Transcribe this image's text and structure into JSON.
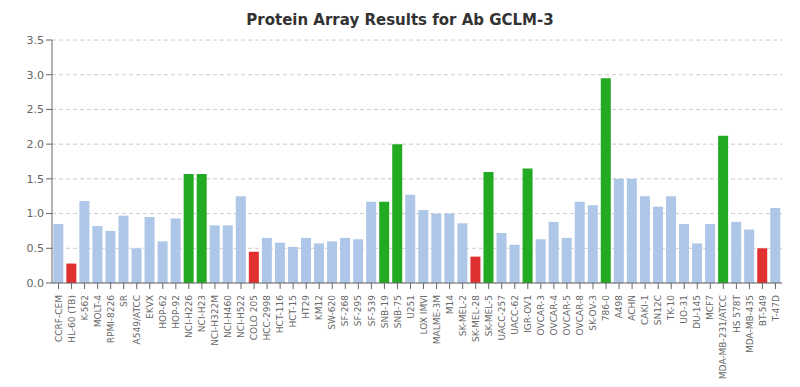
{
  "chart_data": {
    "type": "bar",
    "title": "Protein Array Results for Ab GCLM-3",
    "categories": [
      "CCRF-CEM",
      "HL-60 (TB)",
      "K-562",
      "MOLT-4",
      "RPMI-8226",
      "SR",
      "A549/ATCC",
      "EKVX",
      "HOP-62",
      "HOP-92",
      "NCI-H226",
      "NCI-H23",
      "NCI-H322M",
      "NCI-H460",
      "NCI-H522",
      "COLO 205",
      "HCC-2998",
      "HCT-116",
      "HCT-15",
      "HT29",
      "KM12",
      "SW-620",
      "SF-268",
      "SF-295",
      "SF-539",
      "SNB-19",
      "SNB-75",
      "U251",
      "LOX IMVI",
      "MALME-3M",
      "M14",
      "SK-MEL-2",
      "SK-MEL-28",
      "SK-MEL-5",
      "UACC-257",
      "UACC-62",
      "IGR-OV1",
      "OVCAR-3",
      "OVCAR-4",
      "OVCAR-5",
      "OVCAR-8",
      "SK-OV-3",
      "786-0",
      "A498",
      "ACHN",
      "CAKI-1",
      "SN12C",
      "TK-10",
      "UO-31",
      "DU-145",
      "MCF7",
      "MDA-MB-231/ATCC",
      "HS 578T",
      "MDA-MB-435",
      "BT-549",
      "T-47D"
    ],
    "values": [
      0.85,
      0.28,
      1.18,
      0.82,
      0.75,
      0.97,
      0.5,
      0.95,
      0.6,
      0.93,
      1.57,
      1.57,
      0.83,
      0.83,
      1.25,
      0.45,
      0.65,
      0.58,
      0.52,
      0.65,
      0.57,
      0.6,
      0.65,
      0.63,
      1.17,
      1.17,
      2.0,
      1.27,
      1.05,
      1.0,
      1.0,
      0.86,
      0.38,
      1.6,
      0.72,
      0.55,
      1.65,
      0.63,
      0.88,
      0.65,
      1.17,
      1.12,
      2.95,
      1.5,
      1.5,
      1.25,
      1.1,
      1.25,
      0.85,
      0.57,
      0.85,
      2.12,
      0.88,
      0.77,
      0.5,
      1.08
    ],
    "colors": [
      "#aec6e8",
      "#e03030",
      "#aec6e8",
      "#aec6e8",
      "#aec6e8",
      "#aec6e8",
      "#aec6e8",
      "#aec6e8",
      "#aec6e8",
      "#aec6e8",
      "#22aa22",
      "#22aa22",
      "#aec6e8",
      "#aec6e8",
      "#aec6e8",
      "#e03030",
      "#aec6e8",
      "#aec6e8",
      "#aec6e8",
      "#aec6e8",
      "#aec6e8",
      "#aec6e8",
      "#aec6e8",
      "#aec6e8",
      "#aec6e8",
      "#22aa22",
      "#22aa22",
      "#aec6e8",
      "#aec6e8",
      "#aec6e8",
      "#aec6e8",
      "#aec6e8",
      "#e03030",
      "#22aa22",
      "#aec6e8",
      "#aec6e8",
      "#22aa22",
      "#aec6e8",
      "#aec6e8",
      "#aec6e8",
      "#aec6e8",
      "#aec6e8",
      "#22aa22",
      "#aec6e8",
      "#aec6e8",
      "#aec6e8",
      "#aec6e8",
      "#aec6e8",
      "#aec6e8",
      "#aec6e8",
      "#aec6e8",
      "#22aa22",
      "#aec6e8",
      "#aec6e8",
      "#e03030",
      "#aec6e8"
    ],
    "ylim": [
      0,
      3.5
    ],
    "yticks": [
      {
        "value": 0,
        "label": "0.0"
      },
      0.5,
      {
        "value": 1,
        "label": "1.0"
      },
      1.5,
      {
        "value": 2,
        "label": "2.0"
      },
      2.5,
      {
        "value": 3,
        "label": "3.0"
      },
      3.5
    ],
    "grid": true
  }
}
